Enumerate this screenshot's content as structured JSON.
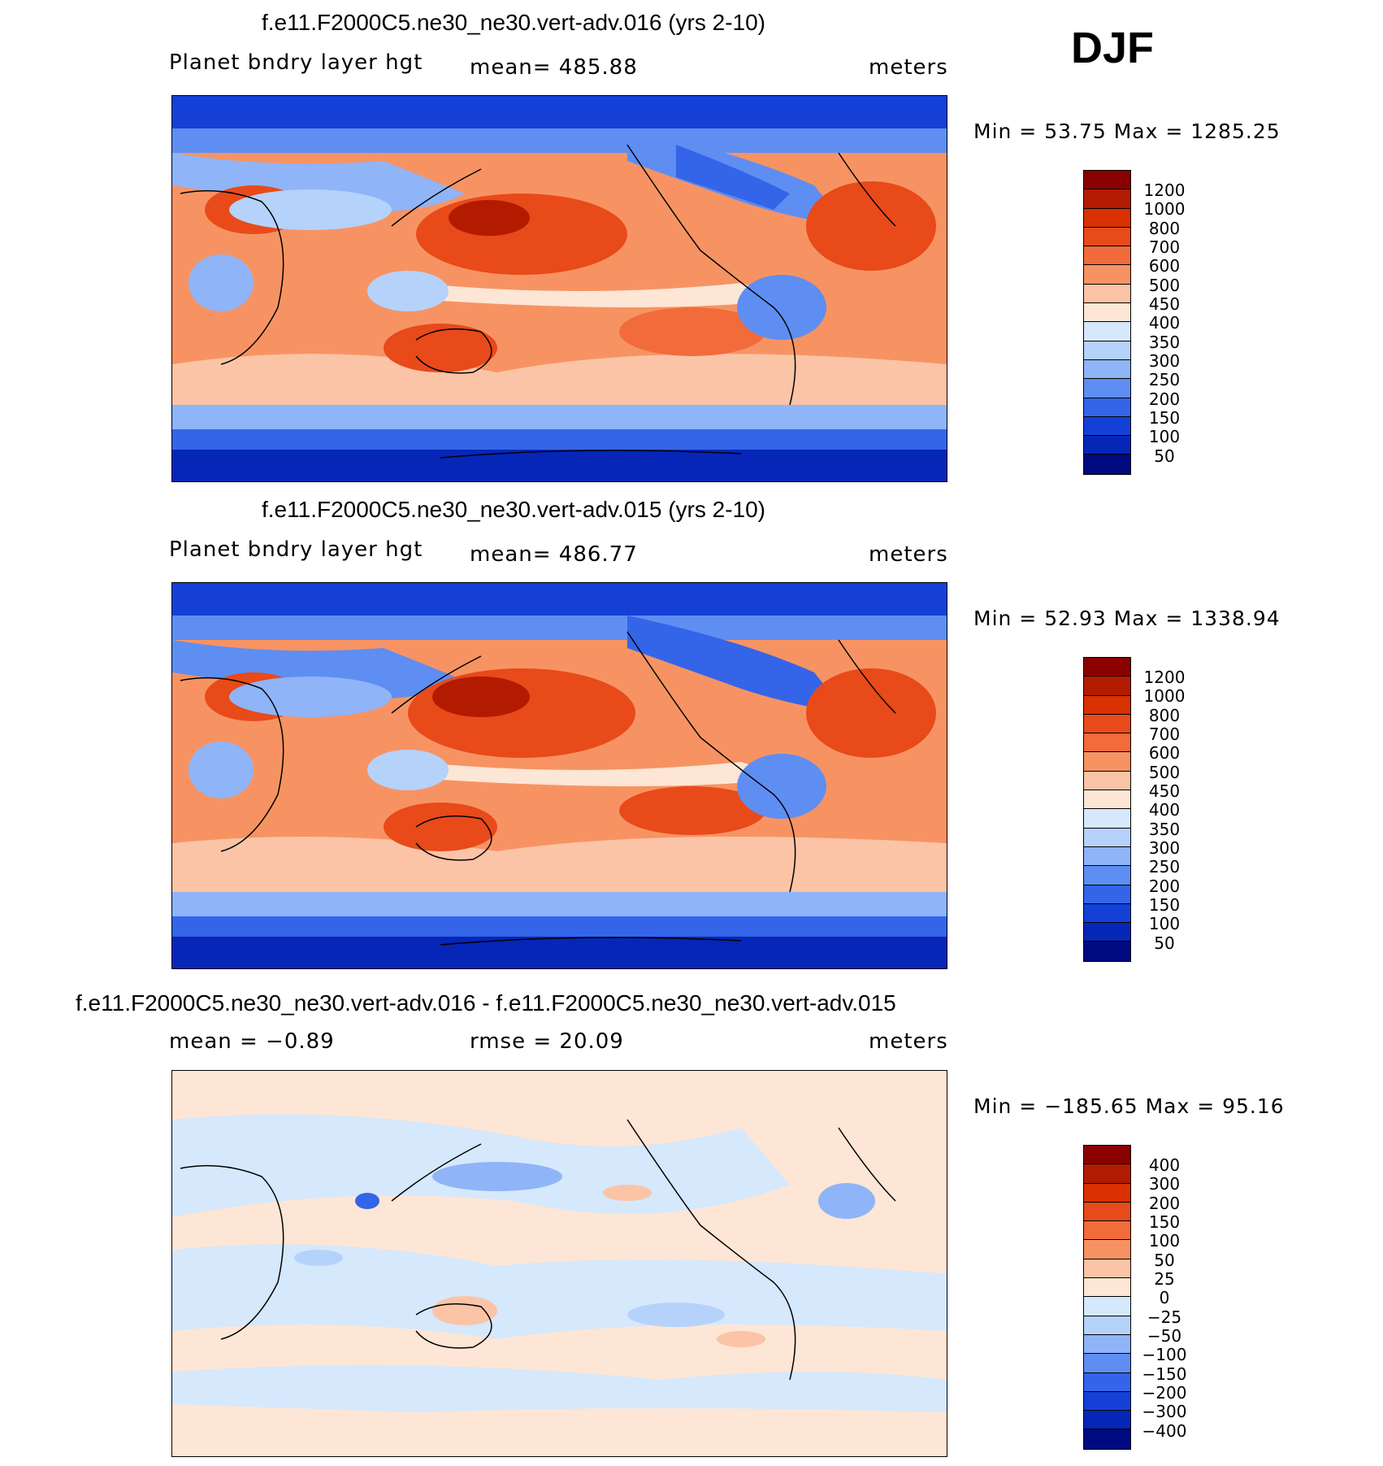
{
  "season": "DJF",
  "units": "meters",
  "field_label": "Planet bndry layer hgt",
  "panels": [
    {
      "title": "f.e11.F2000C5.ne30_ne30.vert-adv.016 (yrs 2-10)",
      "left_text": "Planet bndry layer hgt",
      "center_text": "mean=  485.88",
      "right_text": "meters",
      "minmax": "Min =   53.75 Max =  1285.25",
      "colorbar_labels": [
        "1200",
        "1000",
        "800",
        "700",
        "600",
        "500",
        "450",
        "400",
        "350",
        "300",
        "250",
        "200",
        "150",
        "100",
        "50"
      ]
    },
    {
      "title": "f.e11.F2000C5.ne30_ne30.vert-adv.015 (yrs 2-10)",
      "left_text": "Planet bndry layer hgt",
      "center_text": "mean=  486.77",
      "right_text": "meters",
      "minmax": "Min =   52.93 Max =  1338.94",
      "colorbar_labels": [
        "1200",
        "1000",
        "800",
        "700",
        "600",
        "500",
        "450",
        "400",
        "350",
        "300",
        "250",
        "200",
        "150",
        "100",
        "50"
      ]
    },
    {
      "title": "f.e11.F2000C5.ne30_ne30.vert-adv.016 - f.e11.F2000C5.ne30_ne30.vert-adv.015",
      "left_text": "mean =   −0.89",
      "center_text": "rmse =   20.09",
      "right_text": "meters",
      "minmax": "Min = −185.65 Max =   95.16",
      "colorbar_labels": [
        "400",
        "300",
        "200",
        "150",
        "100",
        "50",
        "25",
        "0",
        "−25",
        "−50",
        "−100",
        "−150",
        "−200",
        "−300",
        "−400"
      ]
    }
  ],
  "colors": {
    "scale": [
      "#8b0000",
      "#b31b00",
      "#d93100",
      "#e84a1a",
      "#f26b3b",
      "#f79363",
      "#fbc4a6",
      "#fde6d5",
      "#d6e8fb",
      "#b5d2fb",
      "#8fb4f8",
      "#5e8ef2",
      "#3465e8",
      "#1440d8",
      "#0626b8",
      "#000a80"
    ]
  },
  "chart_data": [
    {
      "type": "heatmap",
      "title": "f.e11.F2000C5.ne30_ne30.vert-adv.016 (yrs 2-10)",
      "variable": "Planet bndry layer hgt",
      "units": "meters",
      "mean": 485.88,
      "min": 53.75,
      "max": 1285.25,
      "contour_levels": [
        50,
        100,
        150,
        200,
        250,
        300,
        350,
        400,
        450,
        500,
        600,
        700,
        800,
        1000,
        1200
      ]
    },
    {
      "type": "heatmap",
      "title": "f.e11.F2000C5.ne30_ne30.vert-adv.015 (yrs 2-10)",
      "variable": "Planet bndry layer hgt",
      "units": "meters",
      "mean": 486.77,
      "min": 52.93,
      "max": 1338.94,
      "contour_levels": [
        50,
        100,
        150,
        200,
        250,
        300,
        350,
        400,
        450,
        500,
        600,
        700,
        800,
        1000,
        1200
      ]
    },
    {
      "type": "heatmap",
      "title": "f.e11.F2000C5.ne30_ne30.vert-adv.016 - f.e11.F2000C5.ne30_ne30.vert-adv.015",
      "units": "meters",
      "mean": -0.89,
      "rmse": 20.09,
      "min": -185.65,
      "max": 95.16,
      "contour_levels": [
        -400,
        -300,
        -200,
        -150,
        -100,
        -50,
        -25,
        0,
        25,
        50,
        100,
        150,
        200,
        300,
        400
      ]
    }
  ]
}
